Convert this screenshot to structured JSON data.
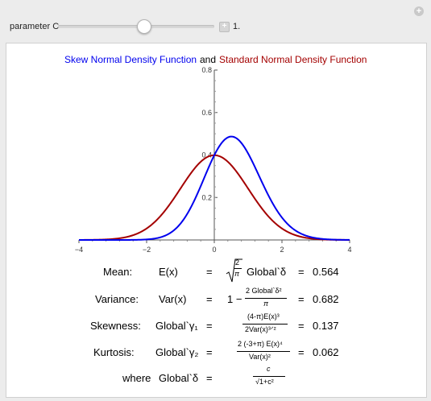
{
  "controls": {
    "parameter_label": "parameter C",
    "parameter_value": "1.",
    "slider_fraction": 0.55
  },
  "chart_data": {
    "type": "line",
    "title_part1": "Skew Normal Density Function",
    "title_and": "and",
    "title_part2": "Standard Normal Density Function",
    "xlim": [
      -4,
      4
    ],
    "ylim": [
      0,
      0.8
    ],
    "x_ticks": [
      "-4",
      "-2",
      "0",
      "2",
      "4"
    ],
    "y_ticks": [
      "0.2",
      "0.4",
      "0.6",
      "0.8"
    ],
    "series": [
      {
        "name": "Skew Normal Density Function",
        "color": "#0000ee",
        "shape": 1.0
      },
      {
        "name": "Standard Normal Density Function",
        "color": "#a40000",
        "shape": 0.0
      }
    ]
  },
  "stats": {
    "mean_label": "Mean:",
    "mean_lhs": "E(x)",
    "mean_rhs": "Global`δ",
    "mean_value": "0.564",
    "variance_label": "Variance:",
    "variance_lhs": "Var(x)",
    "variance_num": "2 Global`δ²",
    "variance_den": "π",
    "variance_value": "0.682",
    "skewness_label": "Skewness:",
    "skewness_lhs": "Global`γ₁",
    "skewness_num": "(4-π)E(x)³",
    "skewness_den": "2Var(x)³ᐟ²",
    "skewness_value": "0.137",
    "kurtosis_label": "Kurtosis:",
    "kurtosis_lhs": "Global`γ₂",
    "kurtosis_num": "2 (-3+π) E(x)⁴",
    "kurtosis_den": "Var(x)²",
    "kurtosis_value": "0.062",
    "where_label": "where",
    "where_lhs": "Global`δ",
    "where_num": "c",
    "where_den": "√1+c²",
    "equals": "=",
    "one_minus": "1 −",
    "sqrt_num": "2",
    "sqrt_den": "π"
  }
}
